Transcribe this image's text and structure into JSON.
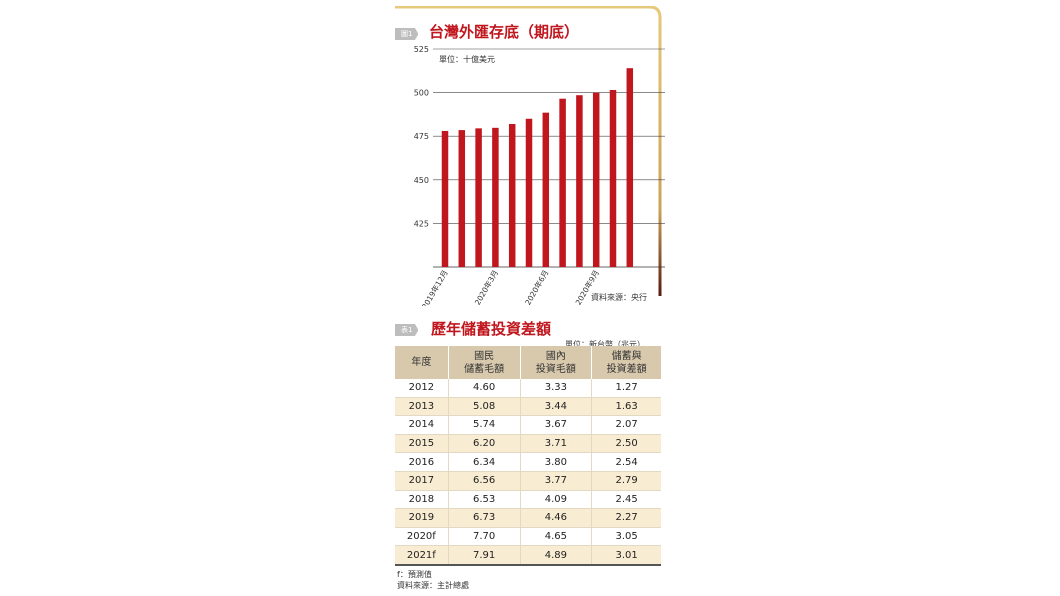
{
  "figure1": {
    "tag": "圖1",
    "title": "台灣外匯存底（期底）",
    "unit": "單位：十億美元",
    "source": "資料來源：央行"
  },
  "chart_data": {
    "type": "bar",
    "categories": [
      "2019年12月",
      "",
      "",
      "2020年3月",
      "",
      "",
      "2020年6月",
      "",
      "",
      "2020年9月",
      "",
      ""
    ],
    "values": [
      478,
      478.5,
      479.5,
      479.8,
      482,
      485,
      488.5,
      496.5,
      498.5,
      500,
      501.5,
      514
    ],
    "ylim": [
      400,
      525
    ],
    "yticks": [
      425,
      450,
      475,
      500,
      525
    ],
    "bar_color": "#c0161e",
    "grid": true
  },
  "table1": {
    "tag": "表1",
    "title": "歷年儲蓄投資差額",
    "unit": "單位：新台幣（兆元）",
    "headers": [
      [
        "年度"
      ],
      [
        "國民",
        "儲蓄毛額"
      ],
      [
        "國內",
        "投資毛額"
      ],
      [
        "儲蓄與",
        "投資差額"
      ]
    ],
    "rows": [
      [
        "2012",
        "4.60",
        "3.33",
        "1.27"
      ],
      [
        "2013",
        "5.08",
        "3.44",
        "1.63"
      ],
      [
        "2014",
        "5.74",
        "3.67",
        "2.07"
      ],
      [
        "2015",
        "6.20",
        "3.71",
        "2.50"
      ],
      [
        "2016",
        "6.34",
        "3.80",
        "2.54"
      ],
      [
        "2017",
        "6.56",
        "3.77",
        "2.79"
      ],
      [
        "2018",
        "6.53",
        "4.09",
        "2.45"
      ],
      [
        "2019",
        "6.73",
        "4.46",
        "2.27"
      ],
      [
        "2020f",
        "7.70",
        "4.65",
        "3.05"
      ],
      [
        "2021f",
        "7.91",
        "4.89",
        "3.01"
      ]
    ],
    "footnote": "f：預測值",
    "source": "資料來源：主計總處"
  },
  "colors": {
    "accent": "#c0161e",
    "header_bg": "#d8c9ad",
    "stripe": "#f8ecd2",
    "frame_gold": "#d4b26a"
  }
}
